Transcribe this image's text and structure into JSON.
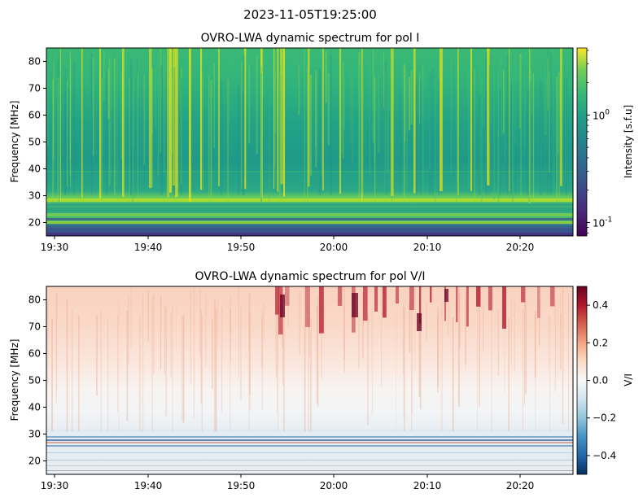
{
  "suptitle": "2023-11-05T19:25:00",
  "chart_data": [
    {
      "type": "heatmap",
      "title": "OVRO-LWA dynamic spectrum for pol I",
      "xlabel": "",
      "ylabel": "Frequency [MHz]",
      "x_ticks": [
        "19:30",
        "19:40",
        "19:50",
        "20:00",
        "20:10",
        "20:20"
      ],
      "y_ticks": [
        20,
        30,
        40,
        50,
        60,
        70,
        80
      ],
      "ylim": [
        15,
        85
      ],
      "colormap": "viridis",
      "colorbar": {
        "label": "Intensity [s.f.u]",
        "scale": "log",
        "ticks": [
          "10^-1",
          "10^0"
        ],
        "range": [
          0.075,
          4.2
        ]
      }
    },
    {
      "type": "heatmap",
      "title": "OVRO-LWA dynamic spectrum for pol V/I",
      "xlabel": "",
      "ylabel": "Frequency [MHz]",
      "x_ticks": [
        "19:30",
        "19:40",
        "19:50",
        "20:00",
        "20:10",
        "20:20"
      ],
      "y_ticks": [
        20,
        30,
        40,
        50,
        60,
        70,
        80
      ],
      "ylim": [
        15,
        85
      ],
      "colormap": "RdBu_r",
      "colorbar": {
        "label": "V/I",
        "scale": "linear",
        "ticks": [
          "0.4",
          "0.2",
          "0.0",
          "−0.2",
          "−0.4"
        ],
        "range": [
          -0.5,
          0.5
        ]
      }
    }
  ]
}
